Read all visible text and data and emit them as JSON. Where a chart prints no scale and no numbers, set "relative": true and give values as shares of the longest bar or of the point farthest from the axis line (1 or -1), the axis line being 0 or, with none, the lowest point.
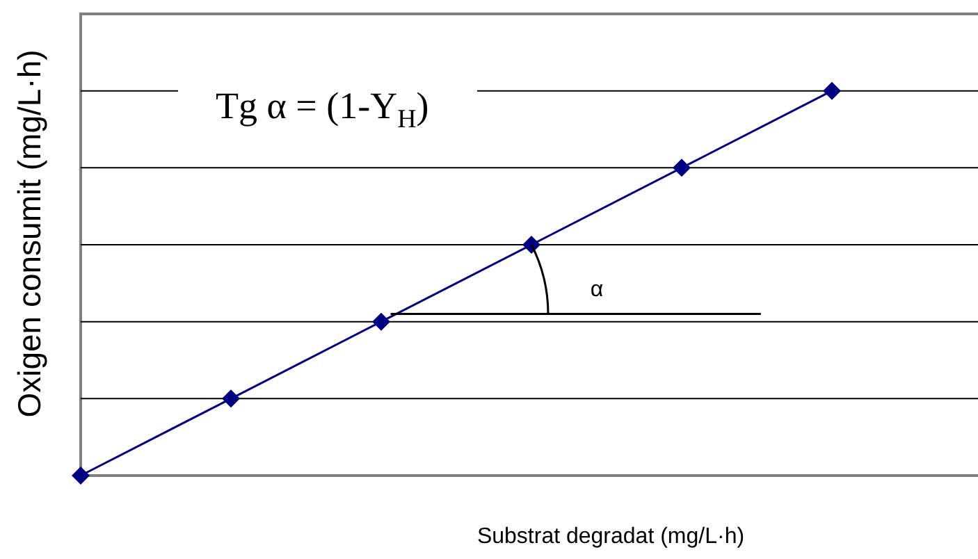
{
  "chart_data": {
    "type": "line",
    "xlabel": "Substrat degradat (mg/L·h)",
    "ylabel": "Oxigen consumit (mg/L·h)",
    "annotations": [
      "Tg α = (1-Y$_{H}$)",
      "α"
    ],
    "categories": [
      null,
      null,
      null,
      null,
      null,
      null
    ],
    "relative": true,
    "series": [
      {
        "color": "#000080",
        "values": [
          0,
          0.2,
          0.4,
          0.6,
          0.8,
          1
        ]
      }
    ],
    "ref_lines": [
      {
        "axis": "y",
        "value": 0.42,
        "color": "#000000"
      }
    ],
    "marker": "diamond",
    "grid": "y"
  }
}
